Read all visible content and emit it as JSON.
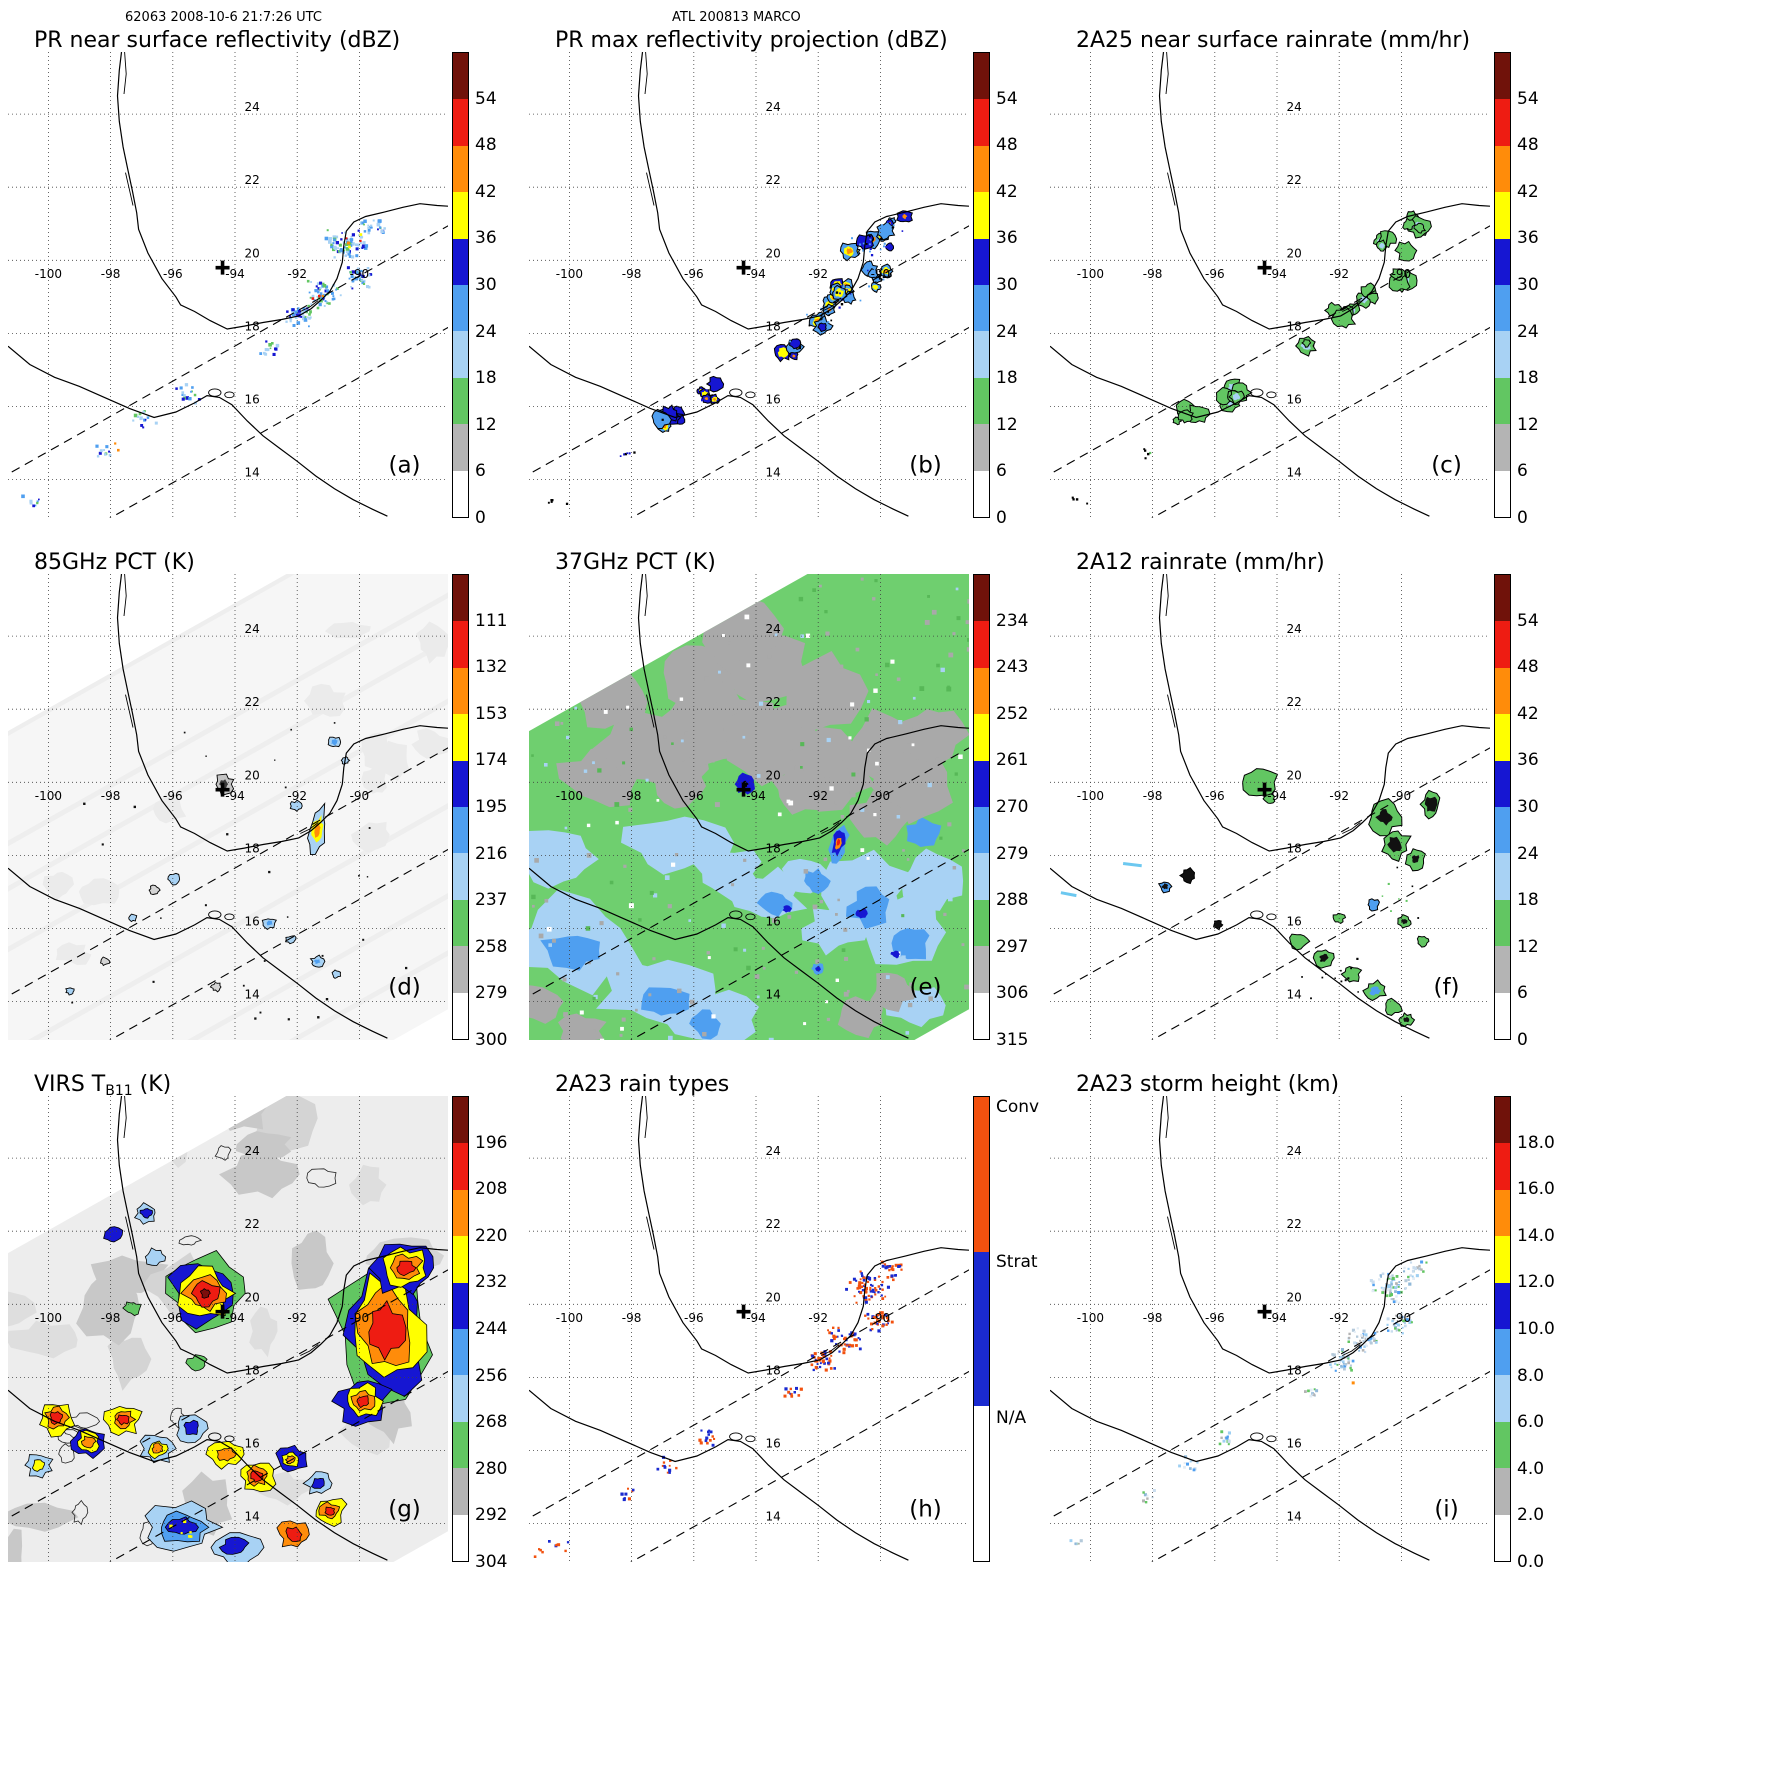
{
  "page": {
    "header_left": "62063 2008-10-6 21:7:26 UTC",
    "header_center": "ATL 200813 MARCO"
  },
  "geo": {
    "extent": {
      "lon": [
        -101.3,
        -87.15
      ],
      "lat": [
        12.95,
        25.7
      ]
    },
    "lon_labels": [
      -100,
      -98,
      -96,
      -94,
      -92,
      -90
    ],
    "lat_labels": [
      14,
      16,
      18,
      20,
      22,
      24
    ],
    "storm_marker": {
      "symbol": "+",
      "lon": -94.4,
      "lat": 19.8
    },
    "swath_edges": "dashed diagonal lines mark the TRMM PR swath"
  },
  "colors": {
    "scale10_top_to_bottom": [
      "#70120a",
      "#ee1c12",
      "#ff8c0a",
      "#ffff00",
      "#1616d2",
      "#4f9ff0",
      "#a8d2f4",
      "#62c662",
      "#b4b4b4",
      "#ffffff"
    ],
    "rain_type_conv": "#f2510f",
    "rain_type_strat": "#1a2ad0",
    "rain_type_na": "#ffffff",
    "swath_green": "#6fcf6f",
    "coast": "#000000"
  },
  "chart_data": [
    {
      "id": "a",
      "type": "heatmap",
      "title": "PR near surface reflectivity (dBZ)",
      "panel_label": "(a)",
      "units": "dBZ",
      "colorbar": {
        "type": "numeric",
        "ticks": [
          "54",
          "48",
          "42",
          "36",
          "30",
          "24",
          "18",
          "12",
          "6",
          "0"
        ]
      },
      "depicts": "Scattered rain cells over the Bay of Campeche, western Yucatan shelf and Pacific coast inside the PR swath"
    },
    {
      "id": "b",
      "type": "heatmap",
      "title": "PR max reflectivity projection (dBZ)",
      "panel_label": "(b)",
      "units": "dBZ",
      "colorbar": {
        "type": "numeric",
        "ticks": [
          "54",
          "48",
          "42",
          "36",
          "30",
          "24",
          "18",
          "12",
          "6",
          "0"
        ]
      },
      "depicts": "Column-maximum reflectivity of the same cells with outlined convective cores"
    },
    {
      "id": "c",
      "type": "heatmap",
      "title": "2A25 near surface rainrate (mm/hr)",
      "panel_label": "(c)",
      "units": "mm/hr",
      "colorbar": {
        "type": "numeric",
        "ticks": [
          "54",
          "48",
          "42",
          "36",
          "30",
          "24",
          "18",
          "12",
          "6",
          "0"
        ]
      },
      "depicts": "Light near-surface rain rates (mostly 6-12 mm/hr) in outlined patches"
    },
    {
      "id": "d",
      "type": "heatmap",
      "title": "85GHz PCT (K)",
      "panel_label": "(d)",
      "units": "K",
      "colorbar": {
        "type": "numeric",
        "ticks": [
          "111",
          "132",
          "153",
          "174",
          "195",
          "216",
          "237",
          "258",
          "279",
          "300"
        ]
      },
      "depicts": "Mostly warm (near 300 K) background with isolated ice-scattering cells; storm center marked +"
    },
    {
      "id": "e",
      "type": "heatmap",
      "title": "37GHz PCT (K)",
      "panel_label": "(e)",
      "units": "K",
      "colorbar": {
        "type": "numeric",
        "ticks": [
          "234",
          "243",
          "252",
          "261",
          "270",
          "279",
          "288",
          "297",
          "306",
          "315"
        ]
      },
      "depicts": "Wide TMI swath: green background, gray high-PCT patches, cooler blue bands, dark minima near storm center"
    },
    {
      "id": "f",
      "type": "heatmap",
      "title": "2A12 rainrate (mm/hr)",
      "panel_label": "(f)",
      "units": "mm/hr",
      "colorbar": {
        "type": "numeric",
        "ticks": [
          "54",
          "48",
          "42",
          "36",
          "30",
          "24",
          "18",
          "12",
          "6",
          "0"
        ]
      },
      "depicts": "Patchy light TMI rain rates near the storm center, southern Bay of Campeche and Pacific coast"
    },
    {
      "id": "g",
      "type": "heatmap",
      "title": "VIRS TB11 (K)",
      "panel_label": "(g)",
      "units": "K",
      "title_parts": {
        "prefix": "VIRS T",
        "sub": "B11",
        "suffix": " (K)"
      },
      "colorbar": {
        "type": "numeric",
        "ticks": [
          "196",
          "208",
          "220",
          "232",
          "244",
          "256",
          "268",
          "280",
          "292",
          "304"
        ]
      },
      "depicts": "Cold IR cloud tops (yellow-red) over the storm center and a large system near Yucatan; warm gray cloud field elsewhere"
    },
    {
      "id": "h",
      "type": "heatmap",
      "title": "2A23 rain types",
      "panel_label": "(h)",
      "units": "category",
      "colorbar": {
        "type": "categorical",
        "ticks": [
          "Conv",
          "Strat",
          "N/A"
        ],
        "segment_colors": [
          "#f2510f",
          "#1a2ad0",
          "#ffffff"
        ]
      },
      "depicts": "Convective (red) and stratiform (blue) pixels in the same locations as the PR rain cells"
    },
    {
      "id": "i",
      "type": "heatmap",
      "title": "2A23 storm height (km)",
      "panel_label": "(i)",
      "units": "km",
      "colorbar": {
        "type": "numeric",
        "ticks": [
          "18.0",
          "16.0",
          "14.0",
          "12.0",
          "10.0",
          "8.0",
          "6.0",
          "4.0",
          "2.0",
          "0.0"
        ]
      },
      "depicts": "PR echo-top heights mostly 4-10 km in the same cell locations"
    }
  ]
}
